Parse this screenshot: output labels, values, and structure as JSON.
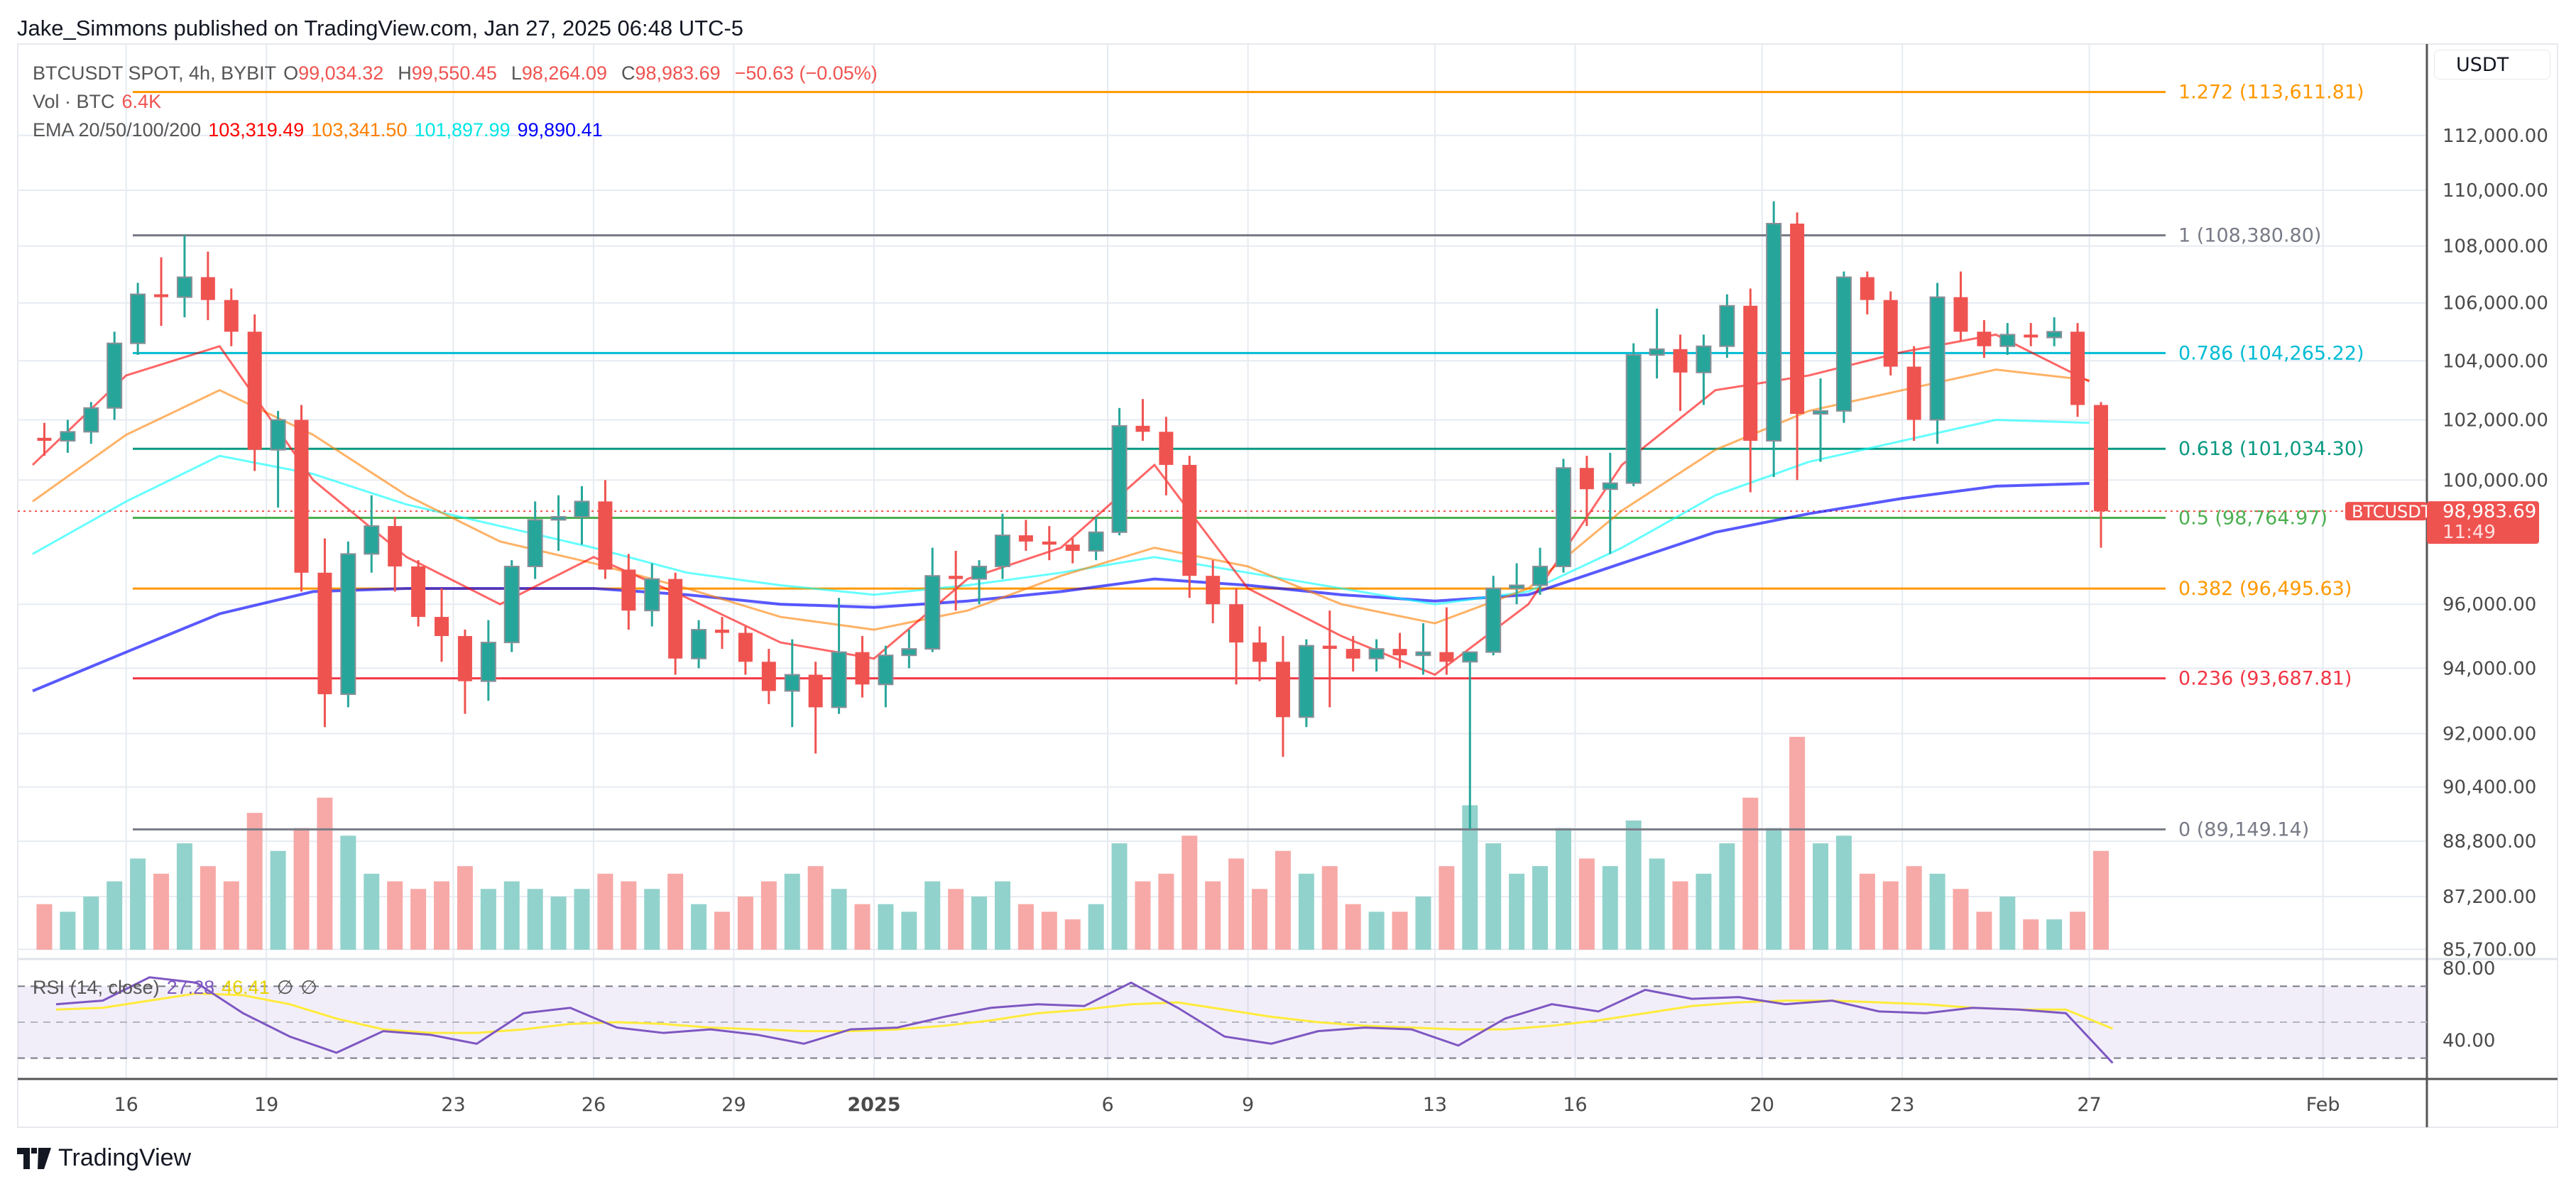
{
  "header": {
    "published": "Jake_Simmons published on TradingView.com, Jan 27, 2025 06:48 UTC-5"
  },
  "legend": {
    "symbol": "BTCUSDT SPOT, 4h, BYBIT",
    "o_label": "O",
    "o": "99,034.32",
    "h_label": "H",
    "h": "99,550.45",
    "l_label": "L",
    "l": "98,264.09",
    "c_label": "C",
    "c": "98,983.69",
    "change": "−50.63 (−0.05%)",
    "vol_label": "Vol · BTC",
    "vol": "6.4K",
    "ema_label": "EMA 20/50/100/200",
    "ema20": "103,319.49",
    "ema50": "103,341.50",
    "ema100": "101,897.99",
    "ema200": "99,890.41",
    "rsi_label": "RSI (14, close)",
    "rsi": "27.28",
    "rsi_ma": "46.41",
    "rsi_na1": "∅",
    "rsi_na2": "∅"
  },
  "price_axis": {
    "currency_button": "USDT",
    "ticks": [
      "112,000.00",
      "110,000.00",
      "108,000.00",
      "106,000.00",
      "104,000.00",
      "102,000.00",
      "100,000.00",
      "96,000.00",
      "94,000.00",
      "92,000.00",
      "90,400.00",
      "88,800.00",
      "87,200.00",
      "85,700.00"
    ],
    "rsi_ticks": [
      "80.00",
      "40.00"
    ],
    "last_price": {
      "symbol": "BTCUSDT",
      "price": "98,983.69",
      "countdown": "11:49",
      "value": 98983.69
    }
  },
  "time_axis": {
    "ticks": [
      "16",
      "19",
      "23",
      "26",
      "29",
      "2025",
      "6",
      "9",
      "13",
      "16",
      "20",
      "23",
      "27",
      "Feb"
    ]
  },
  "footer": {
    "brand": "TradingView"
  },
  "colors": {
    "up": "#26a69a",
    "down": "#ef5350",
    "ema20": "#ff0000",
    "ema50": "#ff7f00",
    "ema100": "#00ffff",
    "ema200": "#0000ff",
    "rsi": "#7e57c2",
    "rsi_ma": "#ffeb3b"
  },
  "chart_data": {
    "type": "candlestick",
    "yscale": "log",
    "ylim": [
      85000,
      115000
    ],
    "grid": true,
    "candles_note_interval": "12h",
    "candles": [
      [
        101400,
        101900,
        100800,
        101300
      ],
      [
        101300,
        102000,
        100900,
        101600
      ],
      [
        101600,
        102600,
        101200,
        102400
      ],
      [
        102400,
        105000,
        102000,
        104600
      ],
      [
        104600,
        106700,
        104200,
        106300
      ],
      [
        106300,
        107600,
        105200,
        106200
      ],
      [
        106200,
        108380,
        105500,
        106900
      ],
      [
        106900,
        107800,
        105400,
        106100
      ],
      [
        106100,
        106500,
        104500,
        105000
      ],
      [
        105000,
        105600,
        100300,
        101000
      ],
      [
        101000,
        102300,
        99100,
        102000
      ],
      [
        102000,
        102500,
        96400,
        97000
      ],
      [
        97000,
        98100,
        92200,
        93200
      ],
      [
        93200,
        98000,
        92800,
        97600
      ],
      [
        97600,
        99500,
        97000,
        98500
      ],
      [
        98500,
        98800,
        96400,
        97200
      ],
      [
        97200,
        97400,
        95300,
        95600
      ],
      [
        95600,
        96500,
        94200,
        95000
      ],
      [
        95000,
        95200,
        92600,
        93600
      ],
      [
        93600,
        95500,
        93000,
        94800
      ],
      [
        94800,
        97400,
        94500,
        97200
      ],
      [
        97200,
        99300,
        96800,
        98700
      ],
      [
        98700,
        99500,
        97700,
        98800
      ],
      [
        98800,
        99800,
        97900,
        99300
      ],
      [
        99300,
        100000,
        96800,
        97100
      ],
      [
        97100,
        97600,
        95200,
        95800
      ],
      [
        95800,
        97300,
        95300,
        96800
      ],
      [
        96800,
        97000,
        93800,
        94300
      ],
      [
        94300,
        95500,
        94000,
        95200
      ],
      [
        95200,
        95600,
        94600,
        95100
      ],
      [
        95100,
        95300,
        93800,
        94200
      ],
      [
        94200,
        94600,
        92900,
        93300
      ],
      [
        93300,
        94900,
        92200,
        93800
      ],
      [
        93800,
        94200,
        91400,
        92800
      ],
      [
        92800,
        96200,
        92600,
        94500
      ],
      [
        94500,
        95000,
        93100,
        93500
      ],
      [
        93500,
        94700,
        92800,
        94400
      ],
      [
        94400,
        95200,
        94000,
        94600
      ],
      [
        94600,
        97800,
        94500,
        96900
      ],
      [
        96900,
        97700,
        95800,
        96800
      ],
      [
        96800,
        97400,
        96000,
        97200
      ],
      [
        97200,
        98900,
        96800,
        98200
      ],
      [
        98200,
        98700,
        97700,
        98000
      ],
      [
        98000,
        98500,
        97400,
        97900
      ],
      [
        97900,
        98100,
        97300,
        97700
      ],
      [
        97700,
        98800,
        97400,
        98300
      ],
      [
        98300,
        102400,
        98200,
        101800
      ],
      [
        101800,
        102700,
        101300,
        101600
      ],
      [
        101600,
        102100,
        99500,
        100500
      ],
      [
        100500,
        100800,
        96200,
        96900
      ],
      [
        96900,
        97400,
        95400,
        96000
      ],
      [
        96000,
        96500,
        93500,
        94800
      ],
      [
        94800,
        95300,
        93600,
        94200
      ],
      [
        94200,
        95000,
        91300,
        92500
      ],
      [
        92500,
        94900,
        92200,
        94700
      ],
      [
        94700,
        95800,
        92800,
        94600
      ],
      [
        94600,
        95000,
        93900,
        94300
      ],
      [
        94300,
        94900,
        93900,
        94600
      ],
      [
        94600,
        95100,
        94000,
        94400
      ],
      [
        94400,
        95400,
        93800,
        94500
      ],
      [
        94500,
        95900,
        93800,
        94200
      ],
      [
        94200,
        94300,
        89150,
        94500
      ],
      [
        94500,
        96900,
        94400,
        96500
      ],
      [
        96500,
        97300,
        96000,
        96600
      ],
      [
        96600,
        97800,
        96300,
        97200
      ],
      [
        97200,
        100700,
        97000,
        100400
      ],
      [
        100400,
        100800,
        98500,
        99700
      ],
      [
        99700,
        100900,
        97600,
        99900
      ],
      [
        99900,
        104600,
        99800,
        104200
      ],
      [
        104200,
        105800,
        103400,
        104400
      ],
      [
        104400,
        104900,
        102300,
        103600
      ],
      [
        103600,
        104900,
        102500,
        104500
      ],
      [
        104500,
        106300,
        104100,
        105900
      ],
      [
        105900,
        106500,
        99600,
        101300
      ],
      [
        101300,
        109600,
        100100,
        108800
      ],
      [
        108800,
        109200,
        100000,
        102200
      ],
      [
        102200,
        103400,
        100600,
        102300
      ],
      [
        102300,
        107100,
        101900,
        106900
      ],
      [
        106900,
        107100,
        105600,
        106100
      ],
      [
        106100,
        106400,
        103500,
        103800
      ],
      [
        103800,
        104500,
        101300,
        102000
      ],
      [
        102000,
        106700,
        101200,
        106200
      ],
      [
        106200,
        107100,
        104700,
        105000
      ],
      [
        105000,
        105400,
        104100,
        104500
      ],
      [
        104500,
        105300,
        104200,
        104900
      ],
      [
        104900,
        105300,
        104500,
        104800
      ],
      [
        104800,
        105500,
        104500,
        105000
      ],
      [
        105000,
        105300,
        102100,
        102500
      ],
      [
        102500,
        102600,
        97800,
        98980
      ]
    ],
    "volume": [
      6,
      5,
      7,
      9,
      12,
      10,
      14,
      11,
      9,
      18,
      13,
      16,
      20,
      15,
      10,
      9,
      8,
      9,
      11,
      8,
      9,
      8,
      7,
      8,
      10,
      9,
      8,
      10,
      6,
      5,
      7,
      9,
      10,
      11,
      8,
      6,
      6,
      5,
      9,
      8,
      7,
      9,
      6,
      5,
      4,
      6,
      14,
      9,
      10,
      15,
      9,
      12,
      8,
      13,
      10,
      11,
      6,
      5,
      5,
      7,
      11,
      19,
      14,
      10,
      11,
      16,
      12,
      11,
      17,
      12,
      9,
      10,
      14,
      20,
      16,
      28,
      14,
      15,
      10,
      9,
      11,
      10,
      8,
      5,
      7,
      4,
      4,
      5,
      13
    ],
    "ema": {
      "ema20": [
        100500,
        103500,
        104500,
        100000,
        97500,
        96000,
        97500,
        96200,
        94800,
        94300,
        96800,
        97800,
        100500,
        96500,
        95000,
        93800,
        96000,
        100500,
        103000,
        103500,
        104300,
        104900,
        103300
      ],
      "ema50": [
        99300,
        101500,
        103000,
        101500,
        99500,
        98000,
        97300,
        96500,
        95600,
        95200,
        95800,
        96900,
        97800,
        97200,
        96000,
        95400,
        96500,
        99000,
        101000,
        102300,
        103000,
        103700,
        103340
      ],
      "ema100": [
        97600,
        99300,
        100800,
        100200,
        99200,
        98500,
        97800,
        97000,
        96600,
        96300,
        96600,
        97000,
        97500,
        97000,
        96500,
        96000,
        96400,
        97800,
        99500,
        100600,
        101300,
        102000,
        101900
      ],
      "ema200": [
        93300,
        94500,
        95700,
        96400,
        96500,
        96500,
        96500,
        96300,
        96000,
        95900,
        96100,
        96400,
        96800,
        96600,
        96300,
        96100,
        96300,
        97300,
        98300,
        98900,
        99400,
        99800,
        99890
      ]
    },
    "fib_levels": [
      {
        "label": "1.272 (113,611.81)",
        "ratio": 1.272,
        "price": 113611.81,
        "color": "#ff9800"
      },
      {
        "label": "1 (108,380.80)",
        "ratio": 1,
        "price": 108380.8,
        "color": "#787b86"
      },
      {
        "label": "0.786 (104,265.22)",
        "ratio": 0.786,
        "price": 104265.22,
        "color": "#00bcd4"
      },
      {
        "label": "0.618 (101,034.30)",
        "ratio": 0.618,
        "price": 101034.3,
        "color": "#089981"
      },
      {
        "label": "0.5 (98,764.97)",
        "ratio": 0.5,
        "price": 98764.97,
        "color": "#4caf50"
      },
      {
        "label": "0.382 (96,495.63)",
        "ratio": 0.382,
        "price": 96495.63,
        "color": "#ff9800"
      },
      {
        "label": "0.236 (93,687.81)",
        "ratio": 0.236,
        "price": 93687.81,
        "color": "#f23645"
      },
      {
        "label": "0 (89,149.14)",
        "ratio": 0,
        "price": 89149.14,
        "color": "#787b86"
      }
    ],
    "rsi": {
      "upper": 70,
      "lower": 30,
      "mid": 50,
      "values": [
        60,
        62,
        75,
        72,
        55,
        42,
        33,
        45,
        43,
        38,
        55,
        58,
        47,
        44,
        46,
        43,
        38,
        46,
        47,
        53,
        58,
        60,
        59,
        72,
        58,
        42,
        38,
        45,
        47,
        46,
        37,
        52,
        60,
        56,
        68,
        63,
        64,
        60,
        62,
        56,
        55,
        58,
        57,
        55,
        27.28
      ],
      "ma": [
        57,
        58,
        62,
        66,
        65,
        60,
        52,
        46,
        44,
        44,
        46,
        49,
        50,
        49,
        47,
        46,
        45,
        45,
        46,
        48,
        51,
        55,
        57,
        60,
        61,
        57,
        53,
        50,
        48,
        47,
        46,
        46,
        48,
        51,
        55,
        59,
        61,
        62,
        62,
        61,
        60,
        58,
        57,
        57,
        46.41
      ]
    }
  }
}
